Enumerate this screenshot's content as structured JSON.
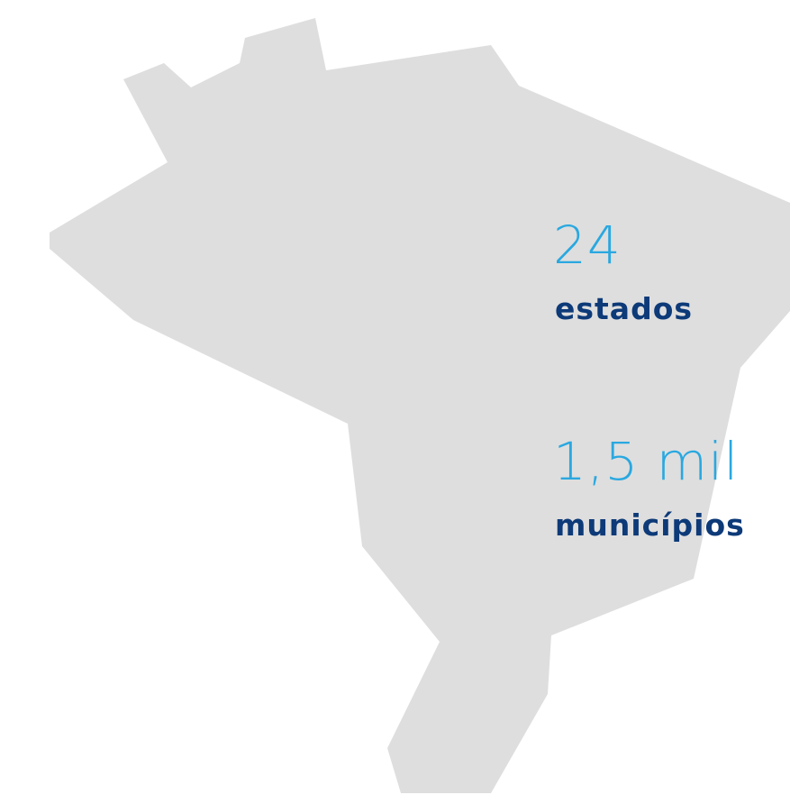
{
  "stats": [
    {
      "value": "24",
      "label": "estados"
    },
    {
      "value": "1,5 mil",
      "label": "municípios"
    }
  ]
}
